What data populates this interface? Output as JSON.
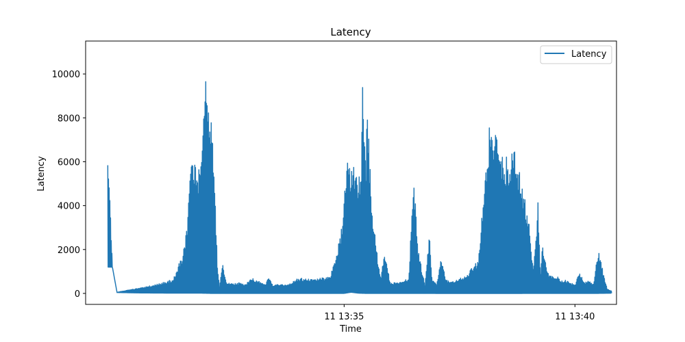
{
  "chart_data": {
    "type": "line",
    "title": "Latency",
    "xlabel": "Time",
    "ylabel": "Latency",
    "x_ticks": [
      "11 13:35",
      "11 13:40"
    ],
    "x_tick_minutes": [
      35,
      40
    ],
    "y_ticks": [
      "0",
      "2000",
      "4000",
      "6000",
      "8000",
      "10000"
    ],
    "y_tick_values": [
      0,
      2000,
      4000,
      6000,
      8000,
      10000
    ],
    "xlim_minutes": [
      29.4,
      40.9
    ],
    "ylim": [
      -500,
      11500
    ],
    "legend": {
      "position": "top-right",
      "entries": [
        "Latency"
      ]
    },
    "grid": false,
    "series": [
      {
        "name": "Latency",
        "color": "#1f77b4",
        "upper_minutes": [
          29.88,
          29.98,
          30.08,
          30.3,
          30.6,
          31.0,
          31.3,
          31.5,
          31.6,
          31.7,
          31.75,
          31.8,
          31.85,
          31.92,
          32.0,
          32.1,
          32.15,
          32.2,
          32.25,
          32.3,
          32.37,
          32.45,
          32.55,
          32.67,
          32.75,
          32.85,
          33.0,
          33.2,
          33.3,
          33.37,
          33.45,
          33.6,
          33.8,
          34.0,
          34.3,
          34.5,
          34.7,
          34.8,
          34.9,
          34.97,
          35.05,
          35.1,
          35.2,
          35.3,
          35.37,
          35.4,
          35.47,
          35.5,
          35.55,
          35.6,
          35.7,
          35.8,
          35.87,
          36.0,
          36.2,
          36.4,
          36.5,
          36.55,
          36.6,
          36.75,
          36.85,
          36.9,
          37.0,
          37.1,
          37.2,
          37.3,
          37.5,
          37.65,
          37.8,
          37.9,
          38.0,
          38.1,
          38.15,
          38.2,
          38.3,
          38.35,
          38.45,
          38.6,
          38.7,
          38.8,
          39.0,
          39.1,
          39.2,
          39.25,
          39.3,
          39.4,
          39.5,
          39.6,
          39.7,
          39.8,
          39.9,
          40.0,
          40.1,
          40.2,
          40.3,
          40.4,
          40.5,
          40.7,
          40.8
        ],
        "upper_values": [
          7150,
          1200,
          50,
          150,
          250,
          450,
          650,
          1800,
          3100,
          7100,
          5800,
          6000,
          5600,
          6800,
          10800,
          8500,
          7200,
          5000,
          1500,
          300,
          1400,
          500,
          500,
          450,
          500,
          400,
          700,
          500,
          400,
          800,
          400,
          400,
          400,
          700,
          650,
          700,
          800,
          1500,
          2500,
          3500,
          6300,
          5800,
          6000,
          5000,
          6100,
          9700,
          6000,
          8800,
          6200,
          4200,
          2000,
          700,
          1900,
          500,
          500,
          700,
          5200,
          4000,
          2000,
          400,
          2800,
          700,
          400,
          1600,
          700,
          500,
          700,
          800,
          1300,
          1500,
          4000,
          6500,
          7900,
          7000,
          8800,
          6300,
          6200,
          6300,
          6600,
          5500,
          3500,
          1000,
          4300,
          800,
          2400,
          1000,
          800,
          800,
          600,
          600,
          500,
          400,
          1000,
          500,
          600,
          400,
          2000,
          200,
          100
        ],
        "lower_minutes": [
          29.98,
          30.08,
          30.6,
          31.3,
          31.6,
          31.7,
          31.9,
          32.1,
          32.35,
          33.0,
          34.3,
          34.8,
          35.0,
          35.15,
          35.3,
          35.45,
          35.7,
          36.0,
          36.4,
          36.55,
          36.8,
          37.2,
          37.6,
          38.0,
          38.3,
          38.6,
          39.0,
          39.4,
          39.9,
          40.5,
          40.8
        ],
        "lower_values": [
          1200,
          40,
          20,
          10,
          10,
          10,
          10,
          0,
          0,
          0,
          0,
          0,
          0,
          50,
          10,
          0,
          0,
          0,
          0,
          0,
          0,
          0,
          0,
          0,
          0,
          0,
          0,
          0,
          0,
          0,
          10
        ]
      }
    ]
  }
}
